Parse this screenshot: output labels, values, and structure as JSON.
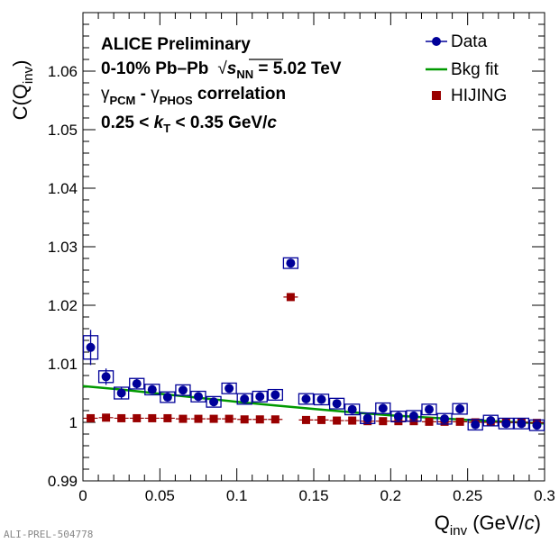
{
  "chart_data": {
    "type": "scatter",
    "xlabel": {
      "main": "Q",
      "sub": "inv",
      "unit_open": " (GeV/",
      "unit_var": "c",
      "unit_close": ")"
    },
    "ylabel": {
      "main": "C(Q",
      "sub": "inv",
      "close": ")"
    },
    "xlim": [
      0,
      0.3
    ],
    "ylim": [
      0.99,
      1.07
    ],
    "x_ticks": [
      0,
      0.05,
      0.1,
      0.15,
      0.2,
      0.25,
      0.3
    ],
    "x_tick_labels": [
      "0",
      "0.05",
      "0.1",
      "0.15",
      "0.2",
      "0.25",
      "0.3"
    ],
    "y_ticks": [
      0.99,
      1.0,
      1.01,
      1.02,
      1.03,
      1.04,
      1.05,
      1.06
    ],
    "y_tick_labels": [
      "0.99",
      "1",
      "1.01",
      "1.02",
      "1.03",
      "1.04",
      "1.05",
      "1.06"
    ],
    "grid": false,
    "legend_position": "top-right",
    "annotations": {
      "line1": "ALICE Preliminary",
      "line2_a": "0-10% Pb",
      "line2_dash": "–",
      "line2_b": "Pb",
      "line2_sqrt": "√",
      "line2_s": "s",
      "line2_sub": "NN",
      "line2_val": " = 5.02 TeV",
      "line3_g1": "γ",
      "line3_sub1": "PCM",
      "line3_dash": " - ",
      "line3_g2": "γ",
      "line3_sub2": "PHOS",
      "line3_rest": " correlation",
      "line4_a": "0.25 < ",
      "line4_k": "k",
      "line4_sub": "T",
      "line4_b": " < 0.35 GeV/",
      "line4_c": "c"
    },
    "footer_label": "ALI-PREL-504778",
    "series": [
      {
        "name": "Data",
        "color": "#000099",
        "marker": "circle",
        "x": [
          0.005,
          0.015,
          0.025,
          0.035,
          0.045,
          0.055,
          0.065,
          0.075,
          0.085,
          0.095,
          0.105,
          0.115,
          0.125,
          0.135,
          0.145,
          0.155,
          0.165,
          0.175,
          0.185,
          0.195,
          0.205,
          0.215,
          0.225,
          0.235,
          0.245,
          0.255,
          0.265,
          0.275,
          0.285,
          0.295
        ],
        "y": [
          1.0128,
          1.0078,
          1.005,
          1.0066,
          1.0056,
          1.0043,
          1.0055,
          1.0044,
          1.0035,
          1.0058,
          1.004,
          1.0044,
          1.0047,
          1.0272,
          1.004,
          1.0039,
          1.0032,
          1.0022,
          1.0007,
          1.0024,
          1.001,
          1.0011,
          1.0022,
          1.0006,
          1.0023,
          0.9996,
          1.0003,
          0.9998,
          0.9998,
          0.9995
        ],
        "stat_err": [
          0.003,
          0.0014,
          0.001,
          0.0008,
          0.0007,
          0.0006,
          0.0006,
          0.0006,
          0.0006,
          0.0006,
          0.0006,
          0.0006,
          0.0006,
          0.0006,
          0.0006,
          0.0006,
          0.0006,
          0.0006,
          0.0006,
          0.0006,
          0.0006,
          0.0006,
          0.0006,
          0.0006,
          0.0006,
          0.0006,
          0.0006,
          0.0006,
          0.0006,
          0.0006
        ],
        "sys_err": [
          0.002,
          0.001,
          0.001,
          0.0009,
          0.0009,
          0.0009,
          0.0009,
          0.0009,
          0.0009,
          0.0009,
          0.0009,
          0.0009,
          0.0009,
          0.0009,
          0.0009,
          0.0009,
          0.0009,
          0.0009,
          0.0009,
          0.0009,
          0.0009,
          0.0009,
          0.0009,
          0.0009,
          0.0009,
          0.0009,
          0.0009,
          0.0009,
          0.0009,
          0.0009
        ]
      },
      {
        "name": "Bkg fit",
        "color": "#009900",
        "marker": "line",
        "x": [
          0.0,
          0.025,
          0.05,
          0.075,
          0.1,
          0.125,
          0.15,
          0.175,
          0.2,
          0.225,
          0.25,
          0.275,
          0.3
        ],
        "y": [
          1.0062,
          1.0056,
          1.0049,
          1.0042,
          1.0035,
          1.0029,
          1.0023,
          1.0017,
          1.0012,
          1.0008,
          1.0004,
          1.0001,
          0.9998
        ]
      },
      {
        "name": "HIJING",
        "color": "#990000",
        "marker": "square",
        "x": [
          0.005,
          0.015,
          0.025,
          0.035,
          0.045,
          0.055,
          0.065,
          0.075,
          0.085,
          0.095,
          0.105,
          0.115,
          0.125,
          0.135,
          0.145,
          0.155,
          0.165,
          0.175,
          0.185,
          0.195,
          0.205,
          0.215,
          0.225,
          0.235,
          0.245,
          0.255,
          0.265,
          0.275,
          0.285,
          0.295
        ],
        "y": [
          1.0007,
          1.0008,
          1.0007,
          1.0007,
          1.0007,
          1.0007,
          1.0006,
          1.0006,
          1.0006,
          1.0006,
          1.0005,
          1.0005,
          1.0005,
          1.0214,
          1.0004,
          1.0004,
          1.0003,
          1.0003,
          1.0002,
          1.0002,
          1.0002,
          1.0002,
          1.0001,
          1.0001,
          1.0001,
          1.0,
          1.0,
          1.0,
          1.0,
          0.9999
        ]
      }
    ]
  }
}
